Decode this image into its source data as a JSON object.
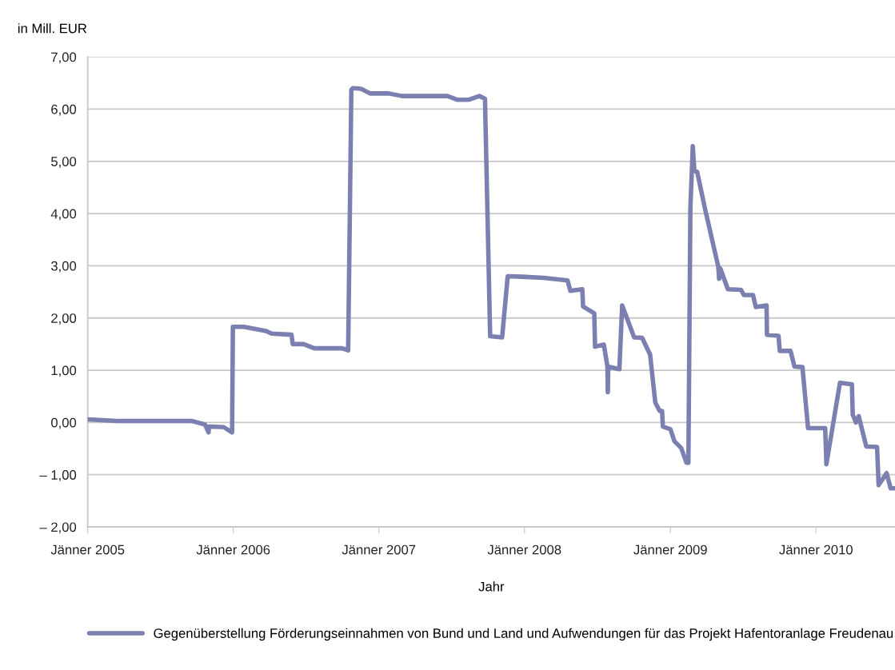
{
  "chart_data": {
    "type": "line",
    "ylabel": "in Mill. EUR",
    "xlabel": "Jahr",
    "x": [
      "2005-01-01",
      "2005-03-15",
      "2005-09-18",
      "2005-10-22",
      "2005-10-31",
      "2005-11-01",
      "2005-11-04",
      "2005-12-08",
      "2005-12-29",
      "2005-12-31",
      "2006-01-27",
      "2006-03-24",
      "2006-04-07",
      "2006-05-27",
      "2006-05-30",
      "2006-06-26",
      "2006-07-23",
      "2006-10-01",
      "2006-10-16",
      "2006-10-24",
      "2006-10-28",
      "2006-11-17",
      "2006-12-10",
      "2007-01-26",
      "2007-02-28",
      "2007-06-22",
      "2007-07-16",
      "2007-08-15",
      "2007-09-10",
      "2007-09-24",
      "2007-10-07",
      "2007-11-06",
      "2007-11-20",
      "2007-12-26",
      "2008-02-18",
      "2008-04-18",
      "2008-04-25",
      "2008-05-25",
      "2008-05-27",
      "2008-06-24",
      "2008-06-26",
      "2008-07-18",
      "2008-07-27",
      "2008-07-28",
      "2008-07-29",
      "2008-08-26",
      "2008-09-02",
      "2008-10-02",
      "2008-10-22",
      "2008-11-11",
      "2008-11-24",
      "2008-12-05",
      "2008-12-11",
      "2008-12-13",
      "2009-01-01",
      "2009-01-11",
      "2009-01-28",
      "2009-02-10",
      "2009-02-15",
      "2009-02-20",
      "2009-02-26",
      "2009-03-02",
      "2009-03-09",
      "2009-03-29",
      "2009-05-01",
      "2009-05-03",
      "2009-05-06",
      "2009-05-25",
      "2009-06-27",
      "2009-07-04",
      "2009-07-27",
      "2009-08-03",
      "2009-08-30",
      "2009-08-31",
      "2009-09-29",
      "2009-10-02",
      "2009-10-29",
      "2009-11-08",
      "2009-11-28",
      "2009-12-12",
      "2010-01-24",
      "2010-01-27",
      "2010-03-02",
      "2010-04-01",
      "2010-04-03",
      "2010-04-11",
      "2010-04-18",
      "2010-05-07",
      "2010-06-03",
      "2010-06-07",
      "2010-06-27",
      "2010-07-07",
      "2010-07-18"
    ],
    "series": [
      {
        "name": "Gegenüberstellung Förderungseinnahmen von Bund und Land und Aufwendungen für das Projekt Hafentoranlage Freudenau",
        "color": "#7b80b0",
        "values": [
          0.06,
          0.03,
          0.03,
          -0.04,
          -0.19,
          -0.08,
          -0.08,
          -0.09,
          -0.19,
          1.83,
          1.83,
          1.75,
          1.7,
          1.68,
          1.5,
          1.5,
          1.42,
          1.42,
          1.38,
          6.37,
          6.4,
          6.39,
          6.3,
          6.3,
          6.25,
          6.25,
          6.18,
          6.18,
          6.25,
          6.2,
          1.65,
          1.63,
          2.8,
          2.79,
          2.77,
          2.72,
          2.52,
          2.55,
          2.22,
          2.09,
          1.45,
          1.49,
          1.07,
          0.58,
          1.07,
          1.02,
          2.24,
          1.63,
          1.62,
          1.3,
          0.38,
          0.22,
          0.22,
          -0.08,
          -0.13,
          -0.36,
          -0.49,
          -0.77,
          -0.77,
          4.1,
          5.29,
          4.82,
          4.8,
          4.08,
          2.98,
          2.75,
          2.95,
          2.55,
          2.54,
          2.44,
          2.44,
          2.21,
          2.24,
          1.68,
          1.66,
          1.37,
          1.37,
          1.07,
          1.06,
          -0.11,
          -0.11,
          -0.8,
          0.76,
          0.73,
          0.15,
          0.0,
          0.12,
          -0.46,
          -0.47,
          -1.2,
          -0.97,
          -1.26,
          -1.26
        ]
      }
    ],
    "xlim": [
      "2005-01-01",
      "2010-07-18"
    ],
    "xticks": [
      {
        "value": "2005-01",
        "label": "Jänner 2005"
      },
      {
        "value": "2006-01",
        "label": "Jänner 2006"
      },
      {
        "value": "2007-01",
        "label": "Jänner 2007"
      },
      {
        "value": "2008-01",
        "label": "Jänner 2008"
      },
      {
        "value": "2009-01",
        "label": "Jänner 2009"
      },
      {
        "value": "2010-01",
        "label": "Jänner 2010"
      }
    ],
    "ylim": [
      -2,
      7
    ],
    "yticks": [
      {
        "value": -2,
        "label": "– 2,00"
      },
      {
        "value": -1,
        "label": "– 1,00"
      },
      {
        "value": 0,
        "label": "0,00"
      },
      {
        "value": 1,
        "label": "1,00"
      },
      {
        "value": 2,
        "label": "2,00"
      },
      {
        "value": 3,
        "label": "3,00"
      },
      {
        "value": 4,
        "label": "4,00"
      },
      {
        "value": 5,
        "label": "5,00"
      },
      {
        "value": 6,
        "label": "6,00"
      },
      {
        "value": 7,
        "label": "7,00"
      }
    ],
    "grid": "y",
    "legend": "bottom",
    "marker": "none",
    "line_style": "solid"
  }
}
